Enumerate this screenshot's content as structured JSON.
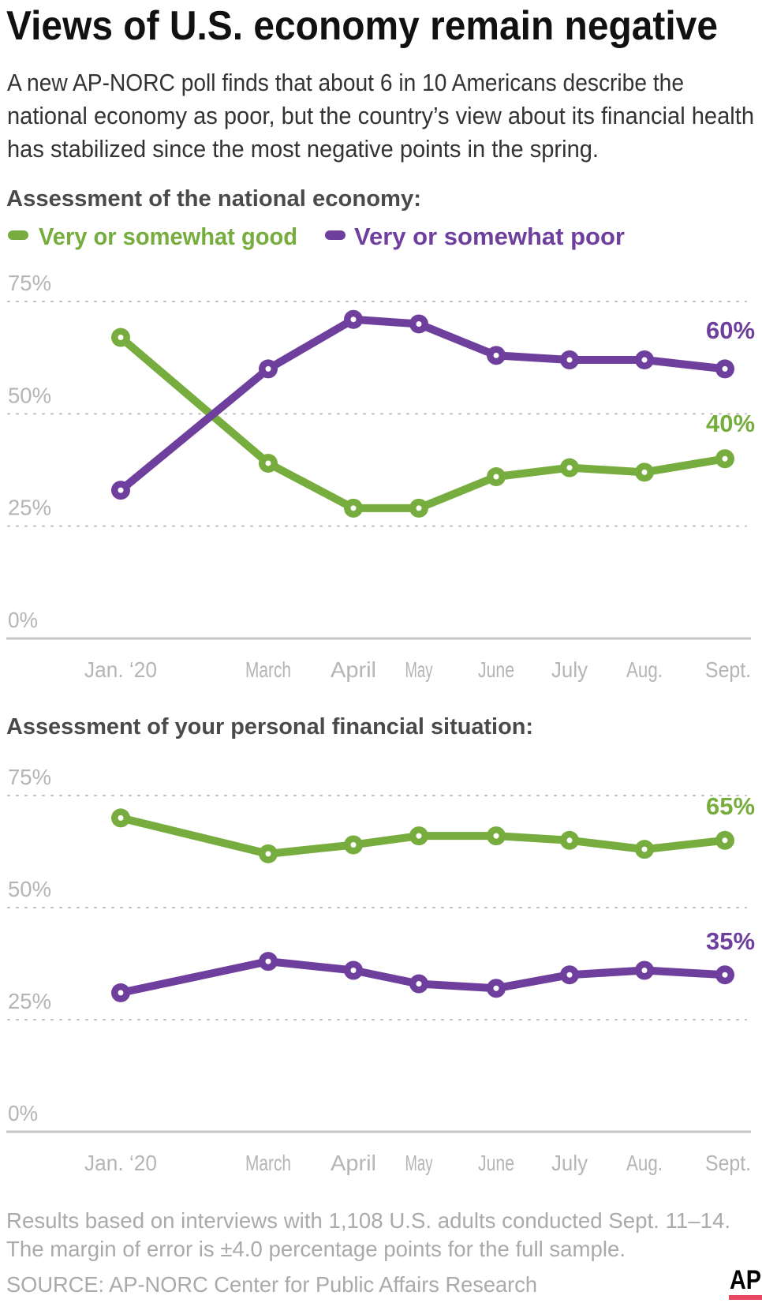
{
  "title": "Views of U.S. economy remain negative",
  "subtitle_lines": [
    "A new AP-NORC poll finds that about 6 in 10 Americans describe the",
    "national economy as poor, but the country’s view about its financial health",
    "has stabilized since the most negative points in the spring."
  ],
  "legend": [
    {
      "label": "Very or somewhat good",
      "color": "#76ad3e"
    },
    {
      "label": "Very or somewhat poor",
      "color": "#6e3f9c"
    }
  ],
  "chart_data": [
    {
      "type": "line",
      "title": "Assessment of the national economy:",
      "categories": [
        "Jan. ‘20",
        "March",
        "April",
        "May",
        "June",
        "July",
        "Aug.",
        "Sept."
      ],
      "ylim": [
        0,
        75
      ],
      "yticks": [
        "0%",
        "25%",
        "50%",
        "75%"
      ],
      "grid": true,
      "legend_placement": "top-left",
      "series": [
        {
          "name": "Very or somewhat good",
          "color": "#76ad3e",
          "values": [
            67,
            39,
            29,
            29,
            36,
            38,
            37,
            40
          ],
          "end_label": "40%"
        },
        {
          "name": "Very or somewhat poor",
          "color": "#6e3f9c",
          "values": [
            33,
            60,
            71,
            70,
            63,
            62,
            62,
            60
          ],
          "end_label": "60%"
        }
      ]
    },
    {
      "type": "line",
      "title": "Assessment of your personal financial situation:",
      "categories": [
        "Jan. ‘20",
        "March",
        "April",
        "May",
        "June",
        "July",
        "Aug.",
        "Sept."
      ],
      "ylim": [
        0,
        75
      ],
      "yticks": [
        "0%",
        "25%",
        "50%",
        "75%"
      ],
      "grid": true,
      "series": [
        {
          "name": "Very or somewhat good",
          "color": "#76ad3e",
          "values": [
            70,
            62,
            64,
            66,
            66,
            65,
            63,
            65
          ],
          "end_label": "65%"
        },
        {
          "name": "Very or somewhat poor",
          "color": "#6e3f9c",
          "values": [
            31,
            38,
            36,
            33,
            32,
            35,
            36,
            35
          ],
          "end_label": "35%"
        }
      ]
    }
  ],
  "footer": {
    "note_lines": [
      "Results based on interviews with 1,108 U.S. adults conducted Sept. 11–14.",
      "The margin of error is ±4.0 percentage points for the full sample."
    ],
    "source": "SOURCE: AP-NORC Center for Public Affairs Research",
    "logo": "AP",
    "logo_accent": "#e8475f"
  }
}
